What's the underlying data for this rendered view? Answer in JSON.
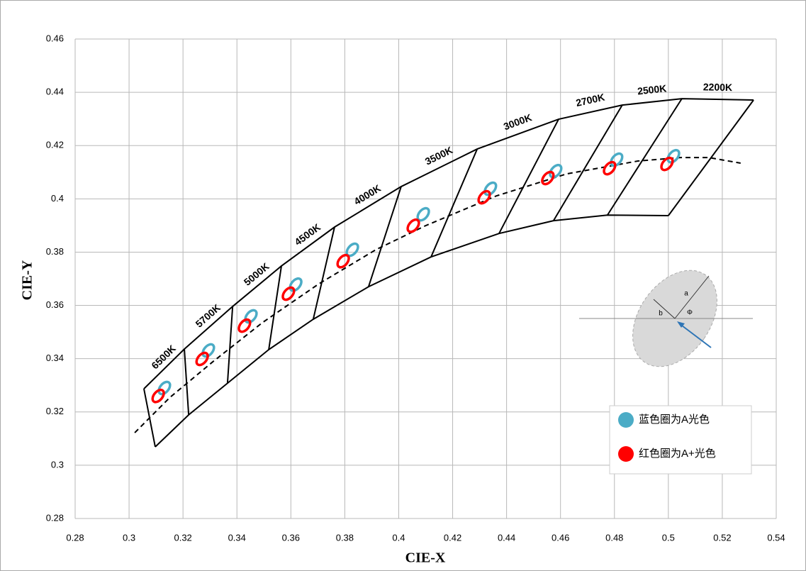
{
  "chart_data": {
    "type": "scatter",
    "xlabel": "CIE-X",
    "ylabel": "CIE-Y",
    "xlim": [
      0.28,
      0.54
    ],
    "xticks": [
      0.28,
      0.3,
      0.32,
      0.34,
      0.36,
      0.38,
      0.4,
      0.42,
      0.44,
      0.46,
      0.48,
      0.5,
      0.52,
      0.54
    ],
    "ylim": [
      0.28,
      0.46
    ],
    "yticks": [
      0.28,
      0.3,
      0.32,
      0.34,
      0.36,
      0.38,
      0.4,
      0.42,
      0.44,
      0.46
    ],
    "grid": true,
    "categories": [
      "6500K",
      "5700K",
      "5000K",
      "4500K",
      "4000K",
      "3500K",
      "3000K",
      "2700K",
      "2500K",
      "2200K"
    ],
    "isotherms": [
      {
        "x": [
          0.3055,
          0.3097
        ],
        "y": [
          0.3287,
          0.3069
        ]
      },
      {
        "x": [
          0.3205,
          0.3221
        ],
        "y": [
          0.3436,
          0.3189
        ]
      },
      {
        "x": [
          0.3384,
          0.3365
        ],
        "y": [
          0.3596,
          0.3308
        ]
      },
      {
        "x": [
          0.3565,
          0.3518
        ],
        "y": [
          0.3748,
          0.3434
        ]
      },
      {
        "x": [
          0.3762,
          0.3683
        ],
        "y": [
          0.3894,
          0.3548
        ]
      },
      {
        "x": [
          0.4009,
          0.3888
        ],
        "y": [
          0.4046,
          0.367
        ]
      },
      {
        "x": [
          0.4291,
          0.412
        ],
        "y": [
          0.4187,
          0.3782
        ]
      },
      {
        "x": [
          0.4593,
          0.4372
        ],
        "y": [
          0.4299,
          0.387
        ]
      },
      {
        "x": [
          0.4829,
          0.4574
        ],
        "y": [
          0.4352,
          0.3918
        ]
      },
      {
        "x": [
          0.505,
          0.4774
        ],
        "y": [
          0.4376,
          0.3939
        ]
      },
      {
        "x": [
          0.5316,
          0.5
        ],
        "y": [
          0.4371,
          0.3937
        ]
      }
    ],
    "locus": {
      "x": [
        0.3021,
        0.3152,
        0.331,
        0.3494,
        0.3704,
        0.3915,
        0.4099,
        0.4362,
        0.4624,
        0.4887,
        0.5045,
        0.515,
        0.5268
      ],
      "y": [
        0.3122,
        0.3255,
        0.3388,
        0.3535,
        0.3681,
        0.3809,
        0.3899,
        0.4011,
        0.4094,
        0.4142,
        0.4155,
        0.4155,
        0.4134
      ]
    },
    "series": [
      {
        "name": "蓝色圈为A光色",
        "color": "#4bacc6",
        "x": [
          0.3131,
          0.3294,
          0.3452,
          0.3618,
          0.3828,
          0.4091,
          0.434,
          0.4582,
          0.4808,
          0.5019
        ],
        "values": [
          0.329,
          0.3431,
          0.3559,
          0.3678,
          0.3809,
          0.3942,
          0.4038,
          0.4104,
          0.4147,
          0.416
        ]
      },
      {
        "name": "红色圈为A+光色",
        "color": "#ff0000",
        "x": [
          0.3108,
          0.3271,
          0.3428,
          0.3591,
          0.3794,
          0.4054,
          0.4317,
          0.4553,
          0.4782,
          0.4995
        ],
        "values": [
          0.326,
          0.3399,
          0.3524,
          0.3644,
          0.3766,
          0.3899,
          0.4006,
          0.4078,
          0.4115,
          0.4131
        ]
      }
    ],
    "inset_labels": [
      "a",
      "b",
      "Φ"
    ]
  }
}
